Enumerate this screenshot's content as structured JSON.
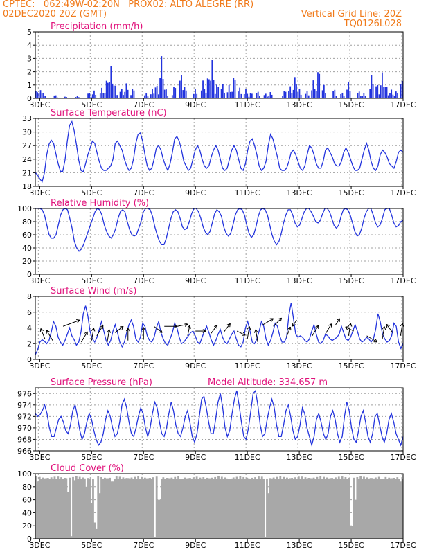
{
  "header": {
    "line1_left": "CPTEC:   062:49W-02:20N   PROX02: ALTO ALEGRE (RR)",
    "line2_left": "02DEC2020 20Z (GMT)",
    "line2_right": "Vertical Grid Line: 20Z",
    "line3_right": "TQ0126L028"
  },
  "colors": {
    "header": "#f07a1a",
    "title": "#e0107a",
    "series": "#2233dd",
    "bars": "#2233dd",
    "cloud": "#a8a8a8",
    "arrow": "#000000"
  },
  "chart_data": [
    {
      "type": "bar",
      "title": "Precipitation (mm/h)",
      "x_ticks": [
        "3DEC",
        "5DEC",
        "7DEC",
        "9DEC",
        "11DEC",
        "13DEC",
        "15DEC",
        "17DEC"
      ],
      "ylim": [
        0,
        5
      ],
      "y_ticks": [
        0,
        1,
        2,
        3,
        4,
        5
      ],
      "days": [
        2.83,
        17.0
      ],
      "peaks": [
        [
          2.88,
          0.7
        ],
        [
          2.95,
          0.5
        ],
        [
          3.05,
          0.7
        ],
        [
          3.15,
          0.4
        ],
        [
          3.6,
          0.3
        ],
        [
          4.0,
          0.15
        ],
        [
          4.45,
          0.2
        ],
        [
          4.9,
          0.5
        ],
        [
          5.1,
          0.6
        ],
        [
          5.4,
          0.8
        ],
        [
          5.6,
          1.7
        ],
        [
          5.75,
          2.5
        ],
        [
          5.9,
          1.3
        ],
        [
          6.15,
          0.8
        ],
        [
          6.35,
          1.2
        ],
        [
          6.6,
          0.9
        ],
        [
          7.1,
          0.4
        ],
        [
          7.35,
          0.7
        ],
        [
          7.5,
          1.2
        ],
        [
          7.7,
          3.2
        ],
        [
          7.85,
          0.9
        ],
        [
          8.2,
          1.1
        ],
        [
          8.45,
          2.1
        ],
        [
          8.6,
          1.0
        ],
        [
          9.0,
          0.7
        ],
        [
          9.3,
          1.4
        ],
        [
          9.5,
          2.0
        ],
        [
          9.65,
          2.9
        ],
        [
          9.85,
          1.3
        ],
        [
          10.05,
          1.2
        ],
        [
          10.3,
          1.0
        ],
        [
          10.5,
          2.0
        ],
        [
          10.7,
          0.9
        ],
        [
          10.95,
          0.7
        ],
        [
          11.15,
          0.5
        ],
        [
          11.4,
          0.6
        ],
        [
          11.7,
          0.4
        ],
        [
          11.9,
          0.5
        ],
        [
          12.45,
          0.7
        ],
        [
          12.65,
          1.0
        ],
        [
          12.85,
          1.8
        ],
        [
          13.0,
          0.8
        ],
        [
          13.3,
          0.6
        ],
        [
          13.55,
          1.4
        ],
        [
          13.75,
          2.6
        ],
        [
          13.95,
          1.1
        ],
        [
          14.35,
          0.8
        ],
        [
          14.65,
          0.5
        ],
        [
          14.9,
          1.3
        ],
        [
          15.3,
          0.6
        ],
        [
          15.5,
          0.4
        ],
        [
          15.8,
          1.9
        ],
        [
          16.0,
          1.3
        ],
        [
          16.2,
          2.0
        ],
        [
          16.35,
          1.2
        ],
        [
          16.55,
          0.7
        ],
        [
          16.75,
          0.6
        ],
        [
          16.95,
          1.6
        ]
      ]
    },
    {
      "type": "line",
      "title": "Surface Temperature (nC)",
      "x_ticks": [
        "3DEC",
        "5DEC",
        "7DEC",
        "9DEC",
        "11DEC",
        "13DEC",
        "15DEC",
        "17DEC"
      ],
      "ylim": [
        18,
        33
      ],
      "y_ticks": [
        18,
        21,
        24,
        27,
        30,
        33
      ],
      "days": [
        2.83,
        17.0
      ],
      "y": [
        21.0,
        20.5,
        19.6,
        19.0,
        21.0,
        25.0,
        27.3,
        28.2,
        27.5,
        25.2,
        23.0,
        21.3,
        21.3,
        23.8,
        28.0,
        31.5,
        32.3,
        30.3,
        27.2,
        23.8,
        21.5,
        21.2,
        23.0,
        25.0,
        26.5,
        28.0,
        27.5,
        25.5,
        23.5,
        22.0,
        21.5,
        21.5,
        22.0,
        22.5,
        24.0,
        27.5,
        28.0,
        27.0,
        26.0,
        24.0,
        22.5,
        21.5,
        22.0,
        24.0,
        27.5,
        29.5,
        29.8,
        28.0,
        25.0,
        22.5,
        21.5,
        22.0,
        24.0,
        26.5,
        27.0,
        26.0,
        24.0,
        22.5,
        21.5,
        23.0,
        25.5,
        28.5,
        29.0,
        28.0,
        26.0,
        23.5,
        22.5,
        21.5,
        22.0,
        24.0,
        26.0,
        27.0,
        26.0,
        24.0,
        22.5,
        22.0,
        22.5,
        24.5,
        26.0,
        27.0,
        26.0,
        24.0,
        22.0,
        21.5,
        22.0,
        24.0,
        26.0,
        27.0,
        26.0,
        24.0,
        22.0,
        21.5,
        23.0,
        26.0,
        28.0,
        28.5,
        27.0,
        25.0,
        22.5,
        21.5,
        22.0,
        23.5,
        27.0,
        29.5,
        28.5,
        26.5,
        24.5,
        22.0,
        21.5,
        21.5,
        22.0,
        23.5,
        25.5,
        26.0,
        25.0,
        23.5,
        22.0,
        21.5,
        22.5,
        25.0,
        27.0,
        26.5,
        25.0,
        23.0,
        22.0,
        22.0,
        23.5,
        26.0,
        26.5,
        25.5,
        24.5,
        23.0,
        22.5,
        22.5,
        23.5,
        25.5,
        26.5,
        25.5,
        24.0,
        22.5,
        21.5,
        21.5,
        22.0,
        24.0,
        26.0,
        27.5,
        26.0,
        23.5,
        22.0,
        21.5,
        22.5,
        25.0,
        26.0,
        25.5,
        24.5,
        23.0,
        22.5,
        22.0,
        23.5,
        25.5,
        26.0,
        25.5
      ]
    },
    {
      "type": "line",
      "title": "Relative Humidity (%)",
      "x_ticks": [
        "3DEC",
        "5DEC",
        "7DEC",
        "9DEC",
        "11DEC",
        "13DEC",
        "15DEC",
        "17DEC"
      ],
      "ylim": [
        0,
        100
      ],
      "y_ticks": [
        0,
        20,
        40,
        60,
        80,
        100
      ],
      "days": [
        2.83,
        17.0
      ],
      "y": [
        100,
        100,
        100,
        98,
        90,
        75,
        60,
        55,
        55,
        60,
        75,
        90,
        98,
        100,
        98,
        85,
        70,
        50,
        40,
        35,
        38,
        45,
        55,
        65,
        75,
        85,
        95,
        100,
        98,
        90,
        75,
        65,
        58,
        55,
        60,
        70,
        85,
        95,
        98,
        95,
        80,
        68,
        60,
        58,
        60,
        70,
        80,
        95,
        100,
        100,
        98,
        88,
        72,
        60,
        50,
        45,
        45,
        55,
        70,
        85,
        95,
        98,
        95,
        85,
        72,
        68,
        70,
        80,
        92,
        100,
        100,
        95,
        85,
        72,
        64,
        60,
        65,
        78,
        92,
        98,
        95,
        88,
        72,
        62,
        58,
        62,
        75,
        90,
        98,
        100,
        98,
        90,
        75,
        62,
        56,
        60,
        72,
        88,
        98,
        100,
        98,
        90,
        75,
        60,
        50,
        45,
        50,
        62,
        78,
        90,
        98,
        98,
        90,
        78,
        72,
        75,
        85,
        95,
        100,
        100,
        95,
        88,
        80,
        78,
        82,
        92,
        100,
        100,
        95,
        85,
        74,
        70,
        75,
        88,
        98,
        100,
        98,
        90,
        78,
        65,
        58,
        60,
        70,
        85,
        95,
        100,
        100,
        90,
        78,
        72,
        75,
        85,
        98,
        100,
        100,
        90,
        78,
        72,
        74,
        80,
        82
      ]
    },
    {
      "type": "line",
      "title": "Surface Wind (m/s)",
      "x_ticks": [
        "3DEC",
        "5DEC",
        "7DEC",
        "9DEC",
        "11DEC",
        "13DEC",
        "15DEC",
        "17DEC"
      ],
      "ylim": [
        0,
        8
      ],
      "y_ticks": [
        0,
        2,
        4,
        6,
        8
      ],
      "days": [
        2.83,
        17.0
      ],
      "y": [
        0.6,
        1.2,
        2.2,
        2.5,
        2.3,
        2.0,
        2.4,
        3.5,
        4.8,
        4.2,
        2.8,
        2.2,
        1.8,
        2.4,
        3.2,
        4.0,
        3.0,
        2.5,
        1.8,
        2.2,
        3.5,
        5.8,
        6.8,
        5.5,
        3.5,
        2.6,
        2.2,
        2.8,
        3.8,
        4.8,
        3.6,
        2.4,
        1.8,
        2.4,
        3.6,
        4.4,
        3.4,
        2.2,
        1.6,
        2.2,
        3.4,
        4.4,
        5.0,
        4.2,
        2.6,
        2.2,
        2.8,
        4.6,
        4.2,
        3.0,
        2.4,
        2.2,
        2.8,
        4.0,
        4.8,
        3.4,
        2.6,
        2.0,
        1.8,
        2.6,
        3.4,
        4.6,
        4.0,
        2.8,
        2.0,
        2.2,
        2.6,
        3.0,
        3.4,
        3.6,
        3.0,
        2.2,
        2.0,
        2.8,
        3.6,
        4.2,
        3.4,
        2.5,
        1.8,
        2.4,
        3.2,
        3.8,
        2.8,
        2.2,
        2.0,
        2.6,
        3.2,
        3.6,
        2.6,
        1.8,
        1.6,
        2.2,
        4.0,
        4.8,
        3.6,
        2.2,
        2.0,
        2.6,
        3.6,
        4.8,
        4.2,
        2.6,
        1.8,
        2.4,
        3.4,
        4.6,
        4.2,
        3.0,
        2.2,
        2.2,
        2.8,
        5.6,
        7.2,
        5.2,
        3.2,
        2.8,
        3.0,
        2.8,
        2.4,
        2.2,
        2.6,
        3.6,
        4.4,
        3.2,
        2.2,
        2.0,
        2.4,
        3.2,
        3.0,
        2.6,
        2.4,
        2.6,
        2.8,
        3.2,
        4.2,
        3.4,
        2.6,
        2.4,
        2.8,
        3.6,
        4.4,
        3.6,
        2.6,
        2.2,
        2.4,
        2.8,
        2.6,
        2.2,
        2.6,
        3.8,
        5.8,
        4.8,
        3.2,
        2.6,
        2.2,
        2.4,
        3.0,
        4.6,
        4.2,
        2.2,
        1.4,
        2.0
      ],
      "arrows": [
        [
          3.2,
          2.6,
          -0.2,
          -0.5
        ],
        [
          3.5,
          2.4,
          -0.3,
          -0.5
        ],
        [
          3.9,
          4.2,
          0.8,
          -0.3
        ],
        [
          4.6,
          2.2,
          0.3,
          -0.5
        ],
        [
          5.0,
          2.4,
          0.1,
          -0.6
        ],
        [
          5.2,
          3.0,
          0.3,
          -0.5
        ],
        [
          5.6,
          2.2,
          0.1,
          -0.6
        ],
        [
          5.9,
          3.4,
          0.4,
          -0.3
        ],
        [
          6.4,
          2.4,
          0.0,
          -0.6
        ],
        [
          7.0,
          2.5,
          0.0,
          -0.6
        ],
        [
          7.4,
          4.2,
          0.4,
          0.3
        ],
        [
          7.8,
          4.2,
          0.6,
          0.0
        ],
        [
          8.3,
          4.2,
          0.5,
          -0.1
        ],
        [
          8.7,
          3.0,
          0.1,
          -0.5
        ],
        [
          9.0,
          3.6,
          0.5,
          0.0
        ],
        [
          9.6,
          3.3,
          0.3,
          -0.4
        ],
        [
          10.1,
          3.5,
          0.3,
          -0.4
        ],
        [
          10.6,
          3.6,
          0.4,
          0.2
        ],
        [
          11.0,
          2.6,
          0.1,
          -0.6
        ],
        [
          11.4,
          2.2,
          -0.1,
          -0.6
        ],
        [
          11.6,
          4.4,
          0.5,
          -0.3
        ],
        [
          12.0,
          4.2,
          0.4,
          -0.4
        ],
        [
          12.5,
          2.8,
          0.2,
          -0.5
        ],
        [
          12.9,
          5.0,
          -0.2,
          0.3
        ],
        [
          13.5,
          3.0,
          0.3,
          -0.5
        ],
        [
          14.0,
          3.2,
          0.3,
          -0.5
        ],
        [
          14.4,
          4.4,
          0.2,
          -0.3
        ],
        [
          14.9,
          3.0,
          0.1,
          -0.6
        ],
        [
          15.1,
          3.6,
          -0.4,
          -0.2
        ],
        [
          15.6,
          3.0,
          0.5,
          0.3
        ],
        [
          16.2,
          2.6,
          0.1,
          -0.6
        ],
        [
          16.6,
          3.4,
          -0.3,
          -0.4
        ],
        [
          16.9,
          3.0,
          0.1,
          -0.6
        ]
      ]
    },
    {
      "type": "line",
      "title": "Surface Pressure (hPa)",
      "annotation": "Model Altitude: 334.657 m",
      "x_ticks": [
        "3DEC",
        "5DEC",
        "7DEC",
        "9DEC",
        "11DEC",
        "13DEC",
        "15DEC",
        "17DEC"
      ],
      "ylim": [
        966,
        977
      ],
      "y_ticks": [
        966,
        968,
        970,
        972,
        974,
        976
      ],
      "days": [
        2.83,
        17.0
      ],
      "y": [
        972.5,
        972.0,
        972.3,
        973.0,
        974.0,
        972.5,
        970.0,
        968.5,
        968.5,
        970.0,
        971.5,
        972.0,
        971.0,
        969.5,
        969.0,
        970.5,
        973.0,
        974.0,
        972.0,
        969.5,
        968.0,
        969.0,
        971.0,
        972.5,
        971.5,
        969.5,
        968.0,
        967.0,
        967.5,
        969.0,
        971.5,
        973.0,
        972.0,
        970.0,
        968.5,
        969.0,
        971.0,
        974.0,
        975.0,
        973.5,
        971.0,
        969.0,
        968.5,
        970.0,
        972.0,
        973.5,
        972.5,
        970.0,
        968.5,
        970.0,
        972.5,
        974.5,
        973.5,
        971.0,
        969.0,
        968.5,
        970.0,
        972.5,
        974.5,
        973.0,
        970.5,
        969.0,
        968.5,
        970.0,
        972.0,
        973.0,
        971.0,
        968.5,
        967.5,
        969.0,
        972.0,
        975.0,
        975.5,
        973.5,
        971.0,
        969.0,
        969.0,
        971.5,
        974.5,
        976.0,
        973.5,
        970.0,
        968.5,
        969.5,
        972.5,
        975.0,
        976.5,
        974.0,
        971.0,
        968.5,
        968.0,
        970.0,
        973.0,
        976.0,
        976.5,
        974.0,
        970.5,
        968.5,
        969.0,
        971.5,
        973.5,
        975.0,
        973.5,
        970.5,
        968.5,
        968.5,
        970.5,
        973.0,
        974.0,
        972.0,
        969.5,
        968.0,
        968.5,
        970.5,
        973.5,
        972.5,
        970.0,
        968.5,
        967.0,
        968.5,
        971.5,
        972.5,
        971.0,
        969.0,
        968.0,
        969.0,
        972.0,
        973.0,
        971.5,
        969.0,
        967.5,
        968.5,
        972.0,
        974.5,
        973.0,
        970.0,
        968.0,
        967.5,
        969.5,
        972.0,
        973.0,
        971.0,
        968.5,
        967.5,
        969.0,
        972.0,
        972.5,
        970.5,
        968.5,
        967.5,
        969.0,
        971.5,
        972.5,
        971.0,
        969.0,
        968.0,
        967.0,
        968.5
      ]
    },
    {
      "type": "bar",
      "title": "Cloud Cover (%)",
      "x_ticks": [
        "3DEC",
        "5DEC",
        "7DEC",
        "9DEC",
        "11DEC",
        "13DEC",
        "15DEC",
        "17DEC"
      ],
      "ylim": [
        0,
        100
      ],
      "y_ticks": [
        0,
        20,
        40,
        60,
        80,
        100
      ],
      "days": [
        2.83,
        17.0
      ],
      "base_level": 96,
      "dips": [
        [
          2.95,
          88
        ],
        [
          3.5,
          92
        ],
        [
          4.1,
          72
        ],
        [
          4.2,
          4
        ],
        [
          4.35,
          90
        ],
        [
          4.8,
          80
        ],
        [
          5.0,
          55
        ],
        [
          5.1,
          40
        ],
        [
          5.15,
          25
        ],
        [
          5.2,
          15
        ],
        [
          5.3,
          70
        ],
        [
          5.8,
          88
        ],
        [
          6.6,
          92
        ],
        [
          7.45,
          3
        ],
        [
          7.6,
          60
        ],
        [
          8.5,
          92
        ],
        [
          9.2,
          94
        ],
        [
          10.3,
          92
        ],
        [
          11.1,
          92
        ],
        [
          11.7,
          3
        ],
        [
          11.8,
          70
        ],
        [
          12.6,
          92
        ],
        [
          13.5,
          94
        ],
        [
          14.7,
          92
        ],
        [
          15.0,
          20
        ],
        [
          15.15,
          60
        ],
        [
          16.2,
          92
        ],
        [
          16.9,
          88
        ]
      ]
    }
  ]
}
